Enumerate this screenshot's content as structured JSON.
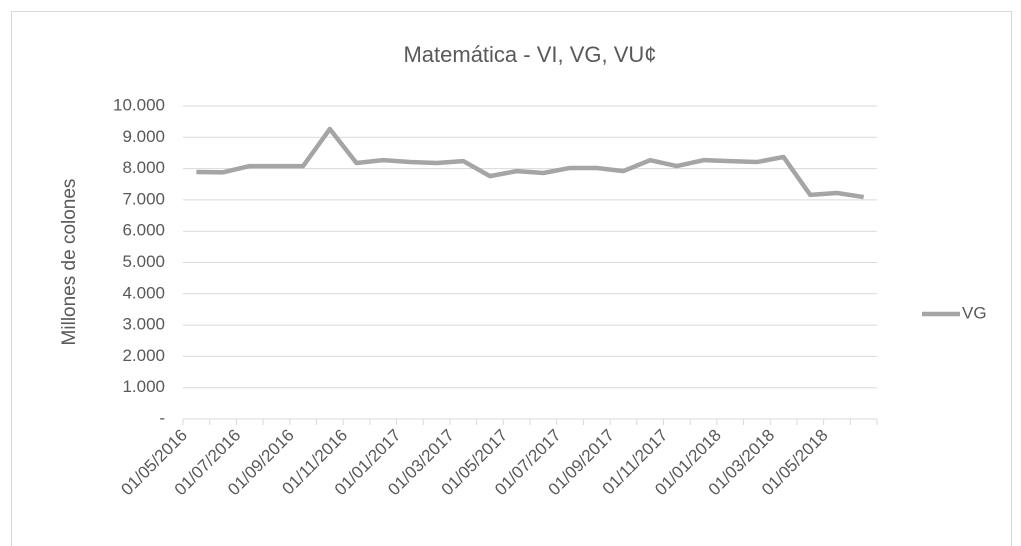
{
  "chart_data": {
    "type": "line",
    "title": "Matemática - VI, VG, VU¢",
    "y_label": "Millones de colones",
    "categories": [
      "01/05/2016",
      null,
      "01/07/2016",
      null,
      "01/09/2016",
      null,
      "01/11/2016",
      null,
      "01/01/2017",
      null,
      "01/03/2017",
      null,
      "01/05/2017",
      null,
      "01/07/2017",
      null,
      "01/09/2017",
      null,
      "01/11/2017",
      null,
      "01/01/2018",
      null,
      "01/03/2018",
      null,
      "01/05/2018",
      null
    ],
    "series": [
      {
        "name": "VG",
        "color": "#a5a5a5",
        "values": [
          7890,
          7880,
          8080,
          8080,
          8080,
          9265,
          8180,
          8270,
          8210,
          8180,
          8240,
          7760,
          7920,
          7860,
          8020,
          8020,
          7920,
          8270,
          8080,
          8270,
          8240,
          8210,
          8370,
          7160,
          7220,
          7090
        ]
      }
    ],
    "ylim": [
      0,
      10000
    ],
    "yticks": [
      {
        "value": 0,
        "label": "-"
      },
      {
        "value": 1000,
        "label": "1.000"
      },
      {
        "value": 2000,
        "label": "2.000"
      },
      {
        "value": 3000,
        "label": "3.000"
      },
      {
        "value": 4000,
        "label": "4.000"
      },
      {
        "value": 5000,
        "label": "5.000"
      },
      {
        "value": 6000,
        "label": "6.000"
      },
      {
        "value": 7000,
        "label": "7.000"
      },
      {
        "value": 8000,
        "label": "8.000"
      },
      {
        "value": 9000,
        "label": "9.000"
      },
      {
        "value": 10000,
        "label": "10.000"
      }
    ],
    "grid": true,
    "legend": "right"
  }
}
